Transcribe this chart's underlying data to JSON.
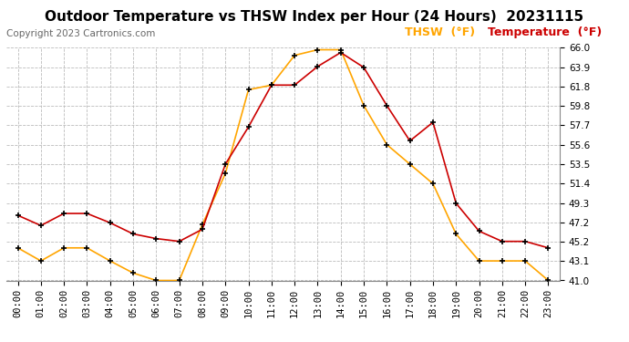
{
  "title": "Outdoor Temperature vs THSW Index per Hour (24 Hours)  20231115",
  "copyright": "Copyright 2023 Cartronics.com",
  "hours": [
    "00:00",
    "01:00",
    "02:00",
    "03:00",
    "04:00",
    "05:00",
    "06:00",
    "07:00",
    "08:00",
    "09:00",
    "10:00",
    "11:00",
    "12:00",
    "13:00",
    "14:00",
    "15:00",
    "16:00",
    "17:00",
    "18:00",
    "19:00",
    "20:00",
    "21:00",
    "22:00",
    "23:00"
  ],
  "temperature": [
    48.0,
    46.9,
    48.2,
    48.2,
    47.2,
    46.0,
    45.5,
    45.2,
    46.5,
    53.5,
    57.5,
    62.0,
    62.0,
    64.0,
    65.5,
    63.9,
    59.8,
    56.0,
    58.0,
    49.3,
    46.3,
    45.2,
    45.2,
    44.5
  ],
  "thsw": [
    44.5,
    43.1,
    44.5,
    44.5,
    43.1,
    41.8,
    41.0,
    41.0,
    47.0,
    52.5,
    61.5,
    62.0,
    65.2,
    65.8,
    65.8,
    59.8,
    55.6,
    53.5,
    51.4,
    46.0,
    43.1,
    43.1,
    43.1,
    41.0
  ],
  "thsw_color": "#FFA500",
  "temp_color": "#CC0000",
  "background_color": "#ffffff",
  "plot_bg_color": "#ffffff",
  "grid_color": "#bbbbbb",
  "legend_thsw": "THSW  (°F)",
  "legend_temp": "Temperature  (°F)",
  "ylim_min": 41.0,
  "ylim_max": 66.0,
  "yticks": [
    41.0,
    43.1,
    45.2,
    47.2,
    49.3,
    51.4,
    53.5,
    55.6,
    57.7,
    59.8,
    61.8,
    63.9,
    66.0
  ],
  "marker": "+",
  "marker_color": "#000000",
  "marker_size": 5,
  "line_width": 1.2,
  "title_fontsize": 11,
  "axis_fontsize": 7.5,
  "legend_fontsize": 9,
  "copyright_fontsize": 7.5
}
